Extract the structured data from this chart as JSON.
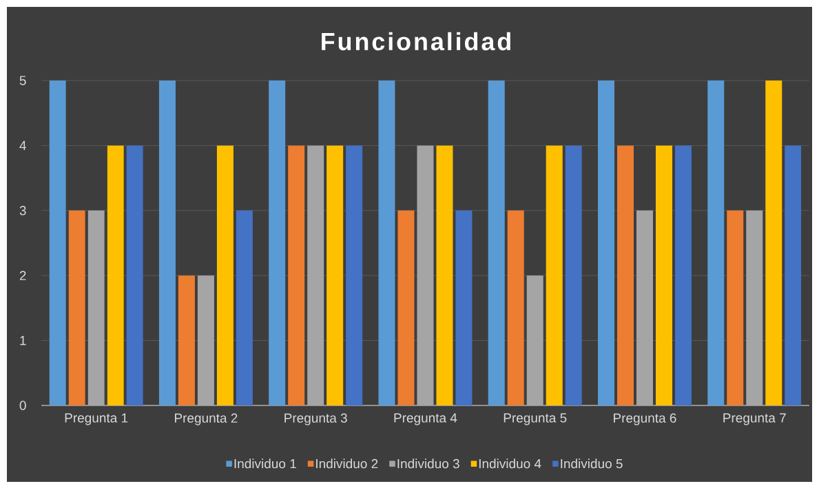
{
  "chart_data": {
    "type": "bar",
    "title": "Funcionalidad",
    "categories": [
      "Pregunta 1",
      "Pregunta 2",
      "Pregunta 3",
      "Pregunta 4",
      "Pregunta 5",
      "Pregunta 6",
      "Pregunta 7"
    ],
    "series": [
      {
        "name": "Individuo 1",
        "color": "#5b9bd5",
        "values": [
          5,
          5,
          5,
          5,
          5,
          5,
          5
        ]
      },
      {
        "name": "Individuo 2",
        "color": "#ed7d31",
        "values": [
          3,
          2,
          4,
          3,
          3,
          4,
          3
        ]
      },
      {
        "name": "Individuo 3",
        "color": "#a5a5a5",
        "values": [
          3,
          2,
          4,
          4,
          2,
          3,
          3
        ]
      },
      {
        "name": "Individuo 4",
        "color": "#ffc000",
        "values": [
          4,
          4,
          4,
          4,
          4,
          4,
          5
        ]
      },
      {
        "name": "Individuo 5",
        "color": "#4472c4",
        "values": [
          4,
          3,
          4,
          3,
          4,
          4,
          4
        ]
      }
    ],
    "ylim": [
      0,
      5
    ],
    "yticks": [
      0,
      1,
      2,
      3,
      4,
      5
    ],
    "grid": "y",
    "legend": "bottom"
  }
}
